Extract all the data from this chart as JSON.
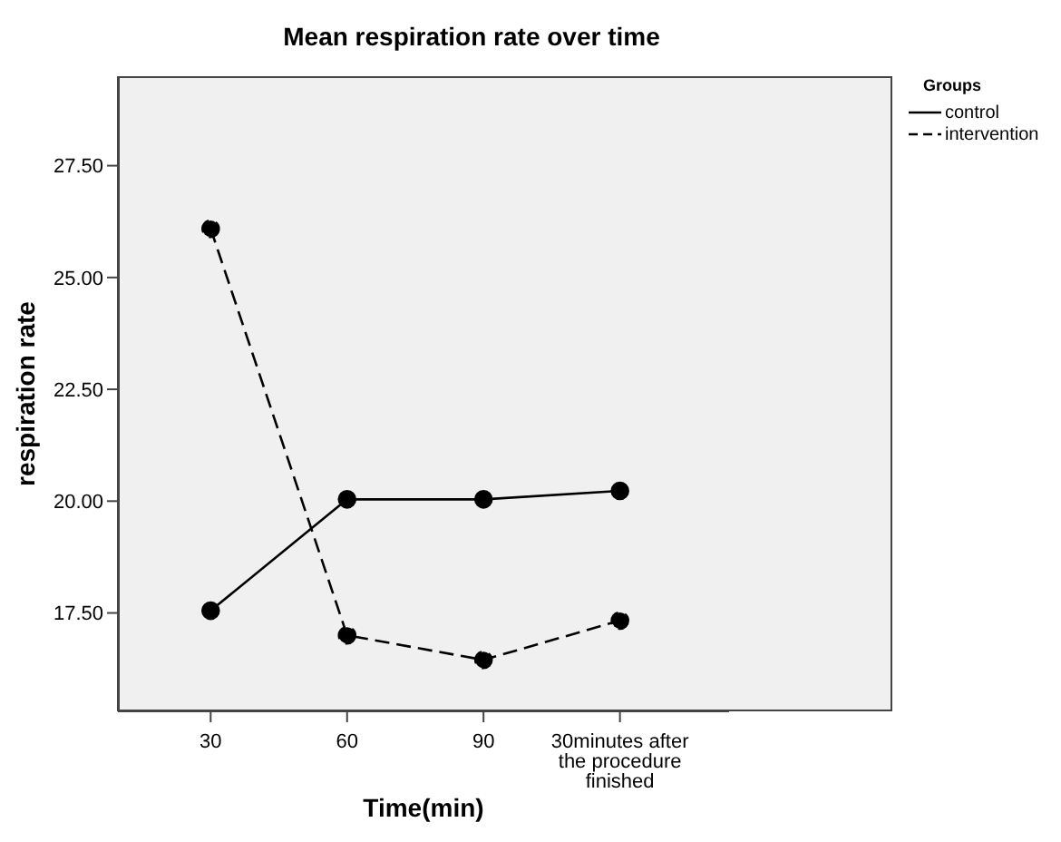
{
  "chart_data": {
    "type": "line",
    "title": "Mean respiration rate over time",
    "xlabel": "Time(min)",
    "ylabel": "respiration rate",
    "legend_title": "Groups",
    "categories": [
      "30",
      "60",
      "90",
      "30minutes after the procedure finished"
    ],
    "series": [
      {
        "name": "control",
        "color": "#000000",
        "line_style": "solid",
        "values": [
          17.55,
          20.04,
          20.04,
          20.23
        ]
      },
      {
        "name": "intervention",
        "color": "#000000",
        "line_style": "dashed",
        "values": [
          26.09,
          17.0,
          16.45,
          17.33
        ]
      }
    ],
    "ylim": [
      15.3,
      29.5
    ],
    "yticks": [
      {
        "value": 17.5,
        "label": "17.50"
      },
      {
        "value": 20,
        "label": "20.00"
      },
      {
        "value": 22.5,
        "label": "22.50"
      },
      {
        "value": 25,
        "label": "25.00"
      },
      {
        "value": 27.5,
        "label": "27.50"
      }
    ],
    "marker": "circle",
    "grid": false,
    "legend": "top right"
  }
}
